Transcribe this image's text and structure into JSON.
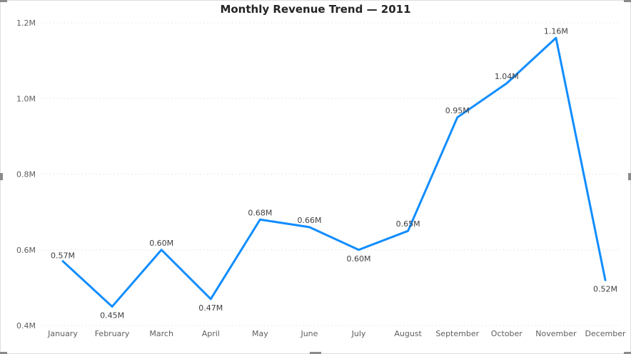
{
  "colors": {
    "series": "#118DFF"
  },
  "chart_data": {
    "type": "line",
    "title": "Monthly Revenue Trend — 2011",
    "xlabel": "",
    "ylabel": "",
    "categories": [
      "January",
      "February",
      "March",
      "April",
      "May",
      "June",
      "July",
      "August",
      "September",
      "October",
      "November",
      "December"
    ],
    "series": [
      {
        "values": [
          0.57,
          0.45,
          0.6,
          0.47,
          0.68,
          0.66,
          0.6,
          0.65,
          0.95,
          1.04,
          1.16,
          0.52
        ],
        "labels": [
          "0.57M",
          "0.45M",
          "0.60M",
          "0.47M",
          "0.68M",
          "0.66M",
          "0.60M",
          "0.65M",
          "0.95M",
          "1.04M",
          "1.16M",
          "0.52M"
        ]
      }
    ],
    "ylim": [
      0.4,
      1.2
    ],
    "yticks": [
      0.4,
      0.6,
      0.8,
      1.0,
      1.2
    ],
    "ytick_labels": [
      "0.4M",
      "0.6M",
      "0.8M",
      "1.0M",
      "1.2M"
    ],
    "grid": true,
    "legend": "none"
  }
}
